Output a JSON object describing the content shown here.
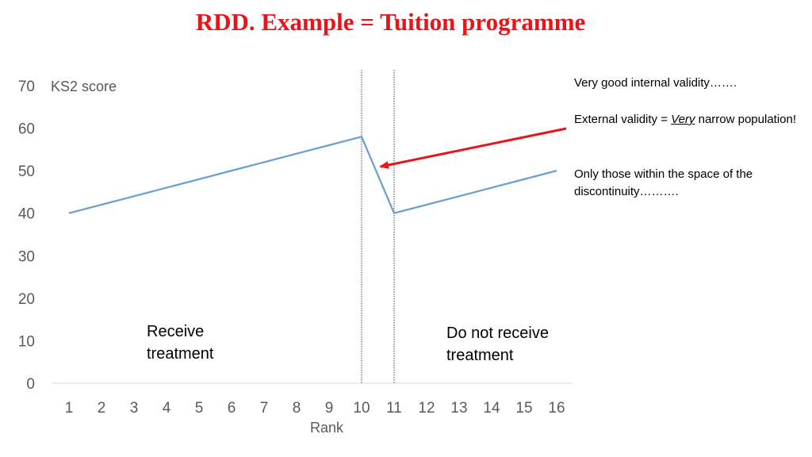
{
  "title": "RDD. Example = Tuition programme",
  "notes": {
    "internal": "Very good internal validity…….",
    "external_prefix": "External validity = ",
    "external_emphasis": "Very",
    "external_suffix": " narrow population!",
    "only": "Only  those within the space of the discontinuity………."
  },
  "regions": {
    "left_line1": "Receive",
    "left_line2": "treatment",
    "right_line1": "Do not receive",
    "right_line2": "treatment"
  },
  "colors": {
    "title": "#e8141a",
    "line": "#6a9fce",
    "arrow": "#e8141a",
    "axis_text": "#595959"
  },
  "chart_data": {
    "type": "line",
    "xlabel": "Rank",
    "ylabel": "KS2 score",
    "categories": [
      "1",
      "2",
      "3",
      "4",
      "5",
      "6",
      "7",
      "8",
      "9",
      "10",
      "11",
      "12",
      "13",
      "14",
      "15",
      "16"
    ],
    "series": [
      {
        "values": [
          40,
          42,
          44,
          46,
          48,
          50,
          52,
          54,
          56,
          58,
          40,
          42,
          44,
          46,
          48,
          50
        ]
      }
    ],
    "yticks": [
      0,
      10,
      20,
      30,
      40,
      50,
      60,
      70
    ],
    "ylim": [
      0,
      70
    ],
    "cutoffs": [
      10,
      11
    ],
    "grid": false
  }
}
